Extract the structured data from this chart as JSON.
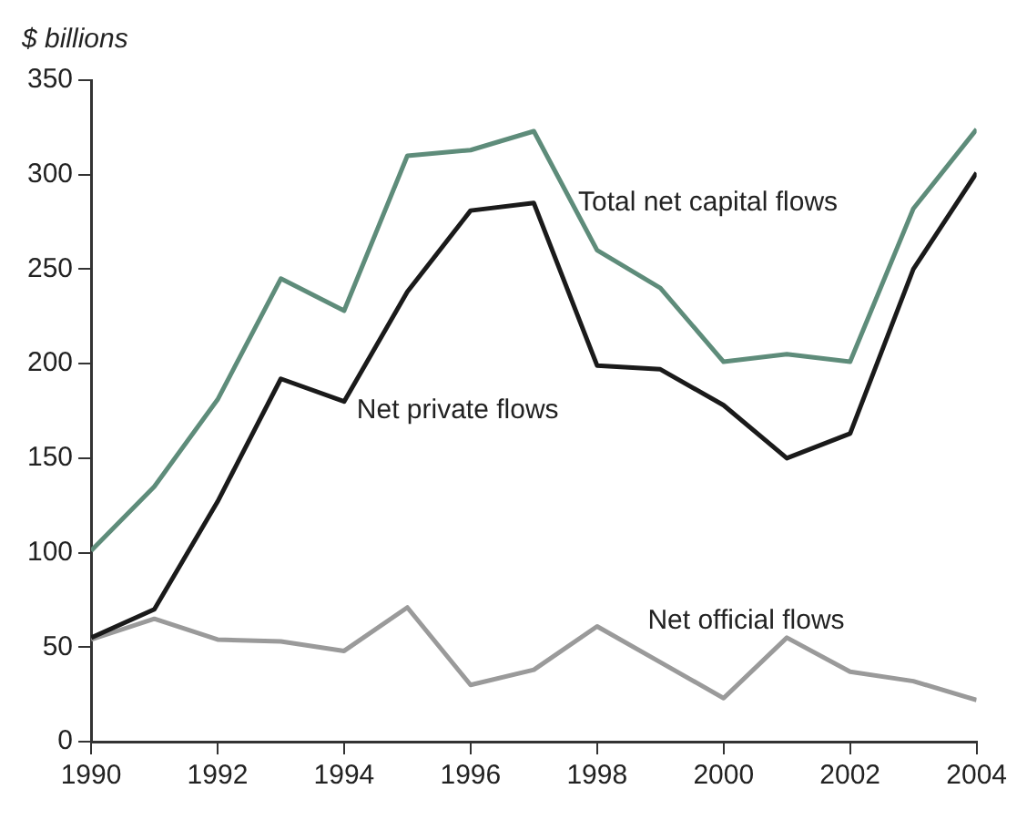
{
  "chart_data": {
    "type": "line",
    "ylabel": "$ billions",
    "x": [
      1990,
      1991,
      1992,
      1993,
      1994,
      1995,
      1996,
      1997,
      1998,
      1999,
      2000,
      2001,
      2002,
      2003,
      2004
    ],
    "series": [
      {
        "name": "Total net capital flows",
        "color": "#5e8c7a",
        "values": [
          101,
          135,
          181,
          245,
          228,
          310,
          313,
          323,
          260,
          240,
          201,
          205,
          201,
          282,
          324
        ]
      },
      {
        "name": "Net private flows",
        "color": "#1a1a1a",
        "values": [
          55,
          70,
          127,
          192,
          180,
          238,
          281,
          285,
          199,
          197,
          178,
          150,
          163,
          250,
          301
        ]
      },
      {
        "name": "Net official flows",
        "color": "#9a9a9a",
        "values": [
          54,
          65,
          54,
          53,
          48,
          71,
          30,
          38,
          61,
          42,
          23,
          55,
          37,
          32,
          22
        ]
      }
    ],
    "xlim": [
      1990,
      2004
    ],
    "xticks": [
      1990,
      1992,
      1994,
      1996,
      1998,
      2000,
      2002,
      2004
    ],
    "ylim": [
      0,
      350
    ],
    "yticks": [
      0,
      50,
      100,
      150,
      200,
      250,
      300,
      350
    ],
    "grid": false,
    "legend": false,
    "marker": "none",
    "line_style": "solid"
  }
}
